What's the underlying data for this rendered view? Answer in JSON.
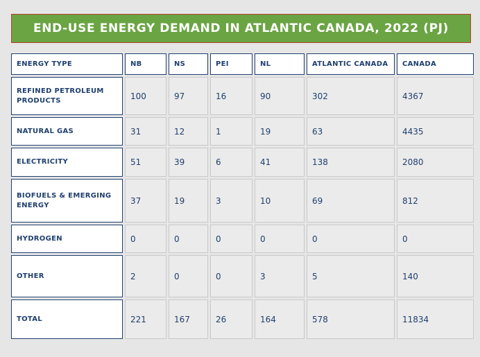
{
  "title": "END-USE ENERGY DEMAND IN ATLANTIC CANADA, 2022 (PJ)",
  "colors": {
    "banner": "#6aa443",
    "banner_border": "#b8402c",
    "text": "#1f3f6e",
    "cell_bg": "#ebebeb",
    "page_bg": "#e6e6e6"
  },
  "table": {
    "headers": [
      "ENERGY TYPE",
      "NB",
      "NS",
      "PEI",
      "NL",
      "ATLANTIC CANADA",
      "CANADA"
    ],
    "rows": [
      {
        "label": "REFINED PETROLEUM PRODUCTS",
        "values": [
          "100",
          "97",
          "16",
          "90",
          "302",
          "4367"
        ]
      },
      {
        "label": "NATURAL GAS",
        "values": [
          "31",
          "12",
          "1",
          "19",
          "63",
          "4435"
        ]
      },
      {
        "label": "ELECTRICITY",
        "values": [
          "51",
          "39",
          "6",
          "41",
          "138",
          "2080"
        ]
      },
      {
        "label": "BIOFUELS & EMERGING ENERGY",
        "values": [
          "37",
          "19",
          "3",
          "10",
          "69",
          "812"
        ]
      },
      {
        "label": "HYDROGEN",
        "values": [
          "0",
          "0",
          "0",
          "0",
          "0",
          "0"
        ]
      },
      {
        "label": "OTHER",
        "values": [
          "2",
          "0",
          "0",
          "3",
          "5",
          "140"
        ]
      },
      {
        "label": "TOTAL",
        "values": [
          "221",
          "167",
          "26",
          "164",
          "578",
          "11834"
        ]
      }
    ]
  }
}
